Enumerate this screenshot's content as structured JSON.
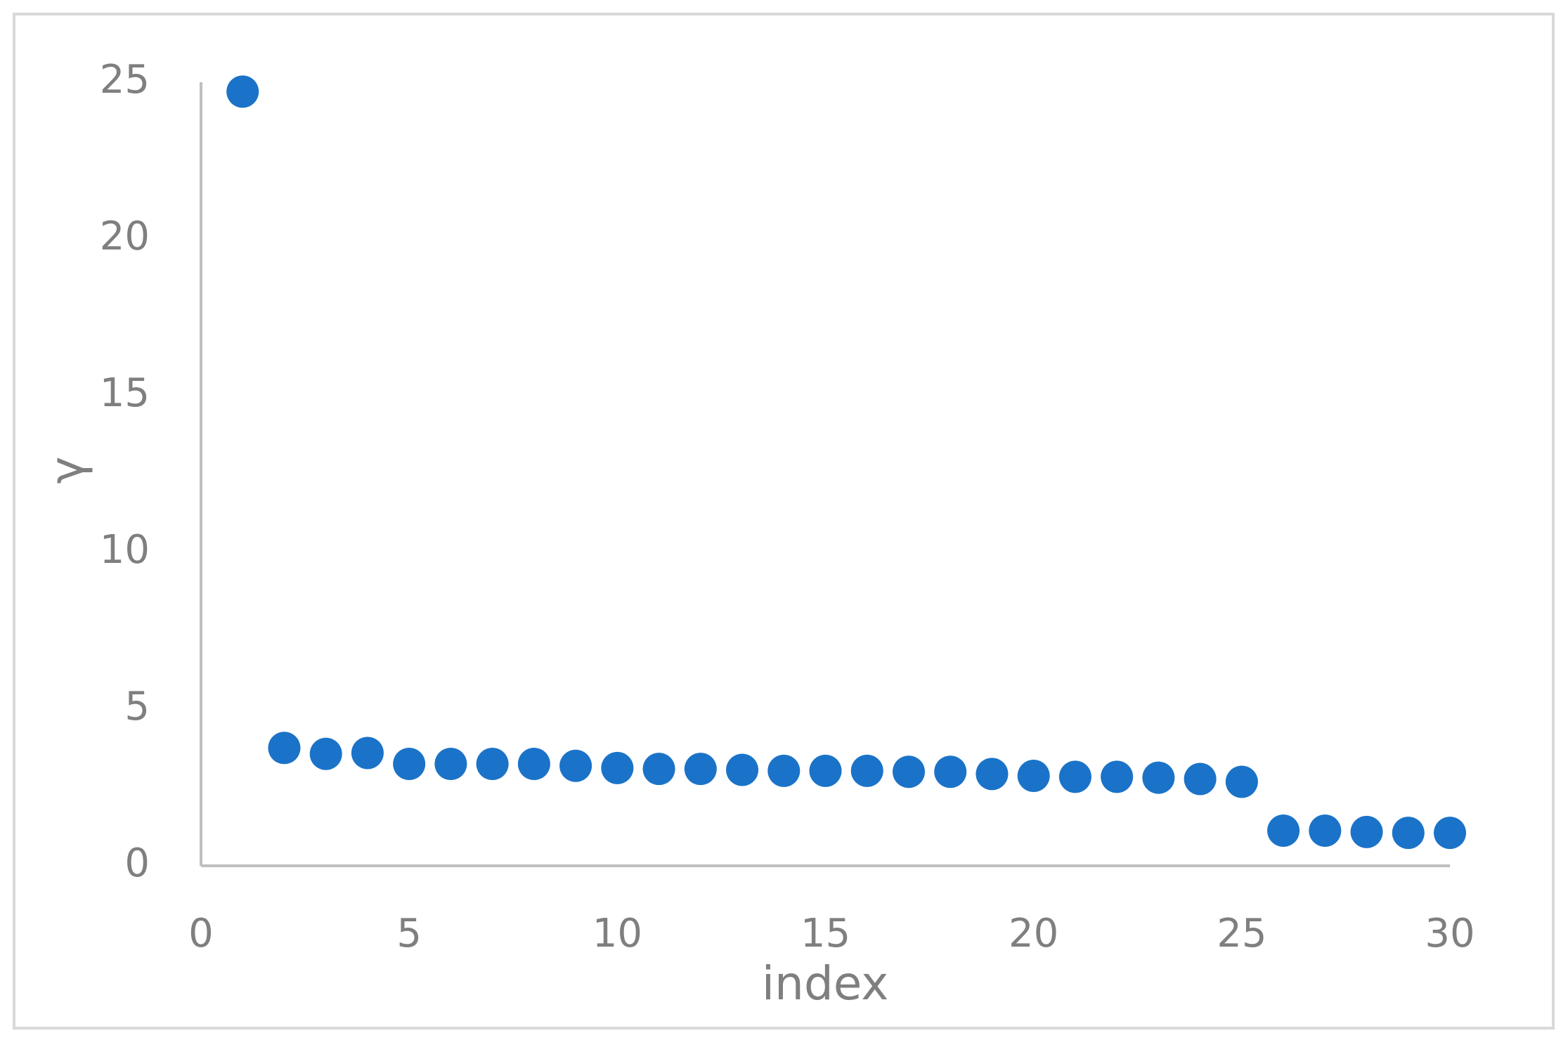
{
  "chart_data": {
    "type": "scatter",
    "x_label": "index",
    "y_label": "γ",
    "x": [
      1,
      2,
      3,
      4,
      5,
      6,
      7,
      8,
      9,
      10,
      11,
      12,
      13,
      14,
      15,
      16,
      17,
      18,
      19,
      20,
      21,
      22,
      23,
      24,
      25,
      26,
      27,
      28,
      29,
      30
    ],
    "series": [
      {
        "color": "#1a73c8",
        "values": [
          24.7,
          3.76,
          3.57,
          3.6,
          3.25,
          3.25,
          3.25,
          3.25,
          3.19,
          3.12,
          3.09,
          3.09,
          3.06,
          3.03,
          3.03,
          3.03,
          3.0,
          3.0,
          2.93,
          2.87,
          2.84,
          2.84,
          2.81,
          2.77,
          2.68,
          1.12,
          1.12,
          1.08,
          1.05,
          1.05
        ]
      }
    ],
    "xlim": [
      0,
      30
    ],
    "xticks": [
      0,
      5,
      10,
      15,
      20,
      25,
      30
    ],
    "ylim": [
      0,
      25
    ],
    "yticks": [
      0,
      5,
      10,
      15,
      20,
      25
    ],
    "grid": false
  }
}
